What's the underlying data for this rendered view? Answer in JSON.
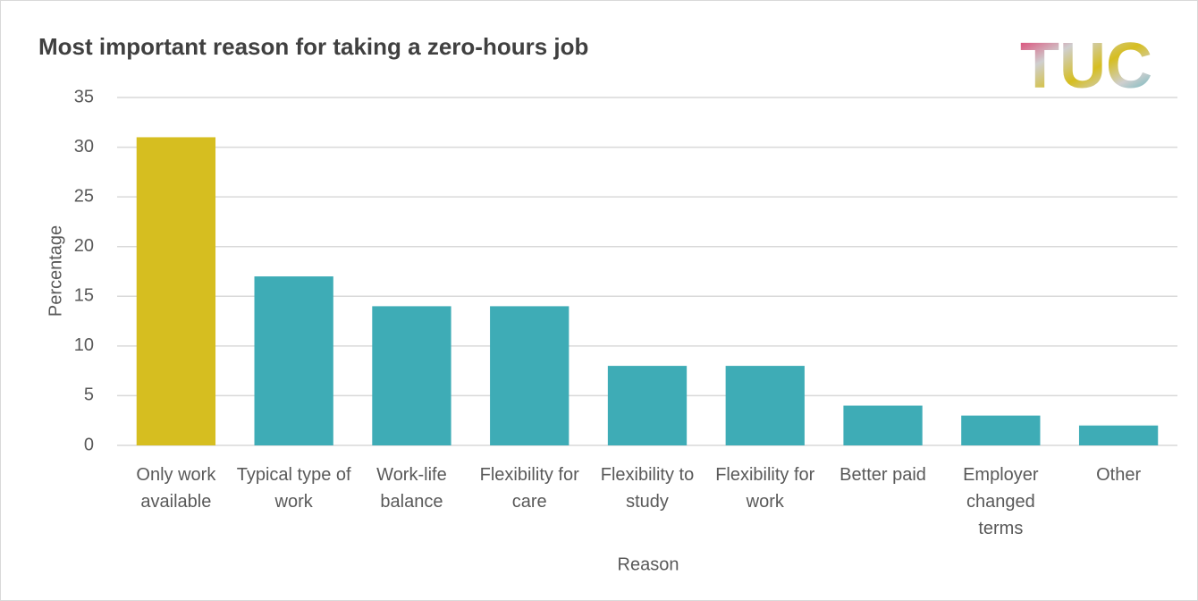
{
  "chart_data": {
    "type": "bar",
    "title": "Most important reason for taking a zero-hours job",
    "logo": "TUC",
    "categories": [
      "Only work available",
      "Typical type of work",
      "Work-life balance",
      "Flexibility for care",
      "Flexibility to study",
      "Flexibility for work",
      "Better paid",
      "Employer changed terms",
      "Other"
    ],
    "values": [
      31,
      17,
      14,
      14,
      8,
      8,
      4,
      3,
      2
    ],
    "colors": [
      "#d6be20",
      "#3eacb6",
      "#3eacb6",
      "#3eacb6",
      "#3eacb6",
      "#3eacb6",
      "#3eacb6",
      "#3eacb6",
      "#3eacb6"
    ],
    "ylim": [
      0,
      35
    ],
    "yticks": [
      0,
      5,
      10,
      15,
      20,
      25,
      30,
      35
    ],
    "grid": true,
    "ylabel": "Percentage",
    "xlabel": "Reason"
  }
}
